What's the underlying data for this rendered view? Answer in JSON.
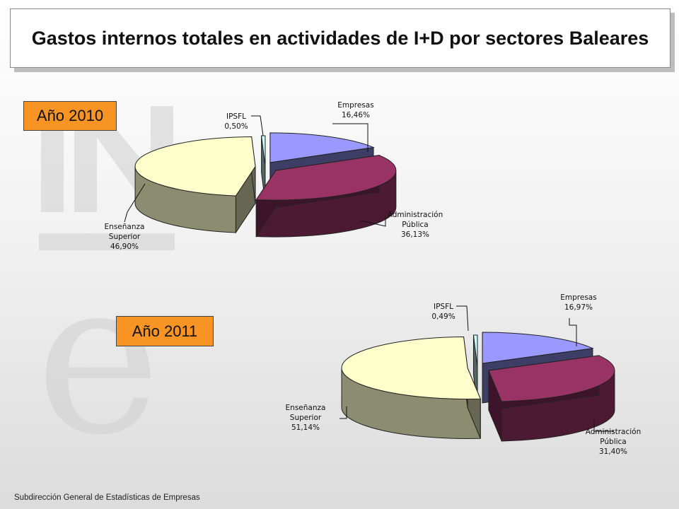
{
  "title": "Gastos internos totales en actividades de I+D por sectores Baleares",
  "footer": "Subdirección General de Estadísticas de Empresas",
  "watermark": {
    "logo_letters": "INE"
  },
  "colors": {
    "Empresas": "#9999ff",
    "Administración Pública": "#993366",
    "Enseñanza Superior": "#ffffcc",
    "IPSFL": "#ccffff",
    "year_label_bg": "#f79423"
  },
  "chart_data": [
    {
      "type": "pie",
      "title": "Año 2010",
      "categories": [
        "Empresas",
        "Administración Pública",
        "Enseñanza Superior",
        "IPSFL"
      ],
      "values": [
        16.46,
        36.13,
        46.9,
        0.5
      ],
      "value_labels": [
        "16,46%",
        "36,13%",
        "46,90%",
        "0,50%"
      ],
      "label_lines": [
        [
          "Empresas"
        ],
        [
          "Administración",
          "Pública"
        ],
        [
          "Enseñanza",
          "Superior"
        ],
        [
          "IPSFL"
        ]
      ],
      "style": "3d exploded"
    },
    {
      "type": "pie",
      "title": "Año 2011",
      "categories": [
        "Empresas",
        "Administración Pública",
        "Enseñanza Superior",
        "IPSFL"
      ],
      "values": [
        16.97,
        31.4,
        51.14,
        0.49
      ],
      "value_labels": [
        "16,97%",
        "31,40%",
        "51,14%",
        "0,49%"
      ],
      "label_lines": [
        [
          "Empresas"
        ],
        [
          "Administración",
          "Pública"
        ],
        [
          "Enseñanza",
          "Superior"
        ],
        [
          "IPSFL"
        ]
      ],
      "style": "3d exploded"
    }
  ]
}
